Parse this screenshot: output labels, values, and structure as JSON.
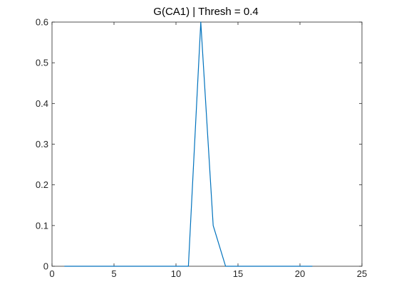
{
  "chart_data": {
    "type": "line",
    "title": "G(CA1) | Thresh = 0.4",
    "xlabel": "",
    "ylabel": "",
    "xlim": [
      0,
      25
    ],
    "ylim": [
      0,
      0.6
    ],
    "xticks": [
      0,
      5,
      10,
      15,
      20,
      25
    ],
    "yticks": [
      0,
      0.1,
      0.2,
      0.3,
      0.4,
      0.5,
      0.6
    ],
    "xtick_labels": [
      "0",
      "5",
      "10",
      "15",
      "20",
      "25"
    ],
    "ytick_labels": [
      "0",
      "0.1",
      "0.2",
      "0.3",
      "0.4",
      "0.5",
      "0.6"
    ],
    "grid": false,
    "legend": "none",
    "series": [
      {
        "color": "#0072BD",
        "x": [
          1,
          2,
          3,
          4,
          5,
          6,
          7,
          8,
          9,
          10,
          11,
          12,
          13,
          14,
          15,
          16,
          17,
          18,
          19,
          20,
          21
        ],
        "y": [
          0,
          0,
          0,
          0,
          0,
          0,
          0,
          0,
          0,
          0,
          0,
          0.6,
          0.1,
          0,
          0,
          0,
          0,
          0,
          0,
          0,
          0
        ]
      }
    ]
  }
}
